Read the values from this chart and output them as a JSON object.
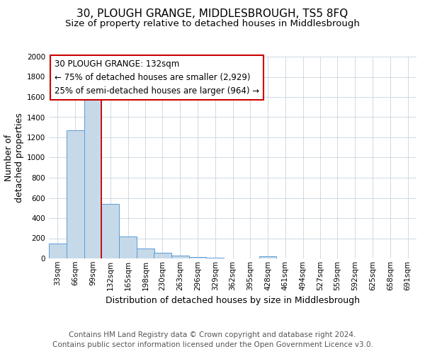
{
  "title": "30, PLOUGH GRANGE, MIDDLESBROUGH, TS5 8FQ",
  "subtitle": "Size of property relative to detached houses in Middlesbrough",
  "xlabel": "Distribution of detached houses by size in Middlesbrough",
  "ylabel": "Number of\ndetached properties",
  "footer_line1": "Contains HM Land Registry data © Crown copyright and database right 2024.",
  "footer_line2": "Contains public sector information licensed under the Open Government Licence v3.0.",
  "annotation_line1": "30 PLOUGH GRANGE: 132sqm",
  "annotation_line2": "← 75% of detached houses are smaller (2,929)",
  "annotation_line3": "25% of semi-detached houses are larger (964) →",
  "marker_sqm": 132,
  "bin_labels": [
    "33sqm",
    "66sqm",
    "99sqm",
    "132sqm",
    "165sqm",
    "198sqm",
    "230sqm",
    "263sqm",
    "296sqm",
    "329sqm",
    "362sqm",
    "395sqm",
    "428sqm",
    "461sqm",
    "494sqm",
    "527sqm",
    "559sqm",
    "592sqm",
    "625sqm",
    "658sqm",
    "691sqm"
  ],
  "bin_edges": [
    33,
    66,
    99,
    132,
    165,
    198,
    230,
    263,
    296,
    329,
    362,
    395,
    428,
    461,
    494,
    527,
    559,
    592,
    625,
    658,
    691,
    724
  ],
  "bar_values": [
    145,
    1270,
    1580,
    540,
    215,
    100,
    55,
    25,
    15,
    5,
    2,
    0,
    22,
    0,
    0,
    0,
    0,
    0,
    0,
    0,
    0
  ],
  "bar_color": "#c6d9e8",
  "bar_edge_color": "#5b9bd5",
  "marker_color": "#cc0000",
  "ylim": [
    0,
    2000
  ],
  "yticks": [
    0,
    200,
    400,
    600,
    800,
    1000,
    1200,
    1400,
    1600,
    1800,
    2000
  ],
  "title_fontsize": 11,
  "subtitle_fontsize": 9.5,
  "axis_label_fontsize": 9,
  "tick_fontsize": 7.5,
  "annotation_fontsize": 8.5,
  "footer_fontsize": 7.5
}
